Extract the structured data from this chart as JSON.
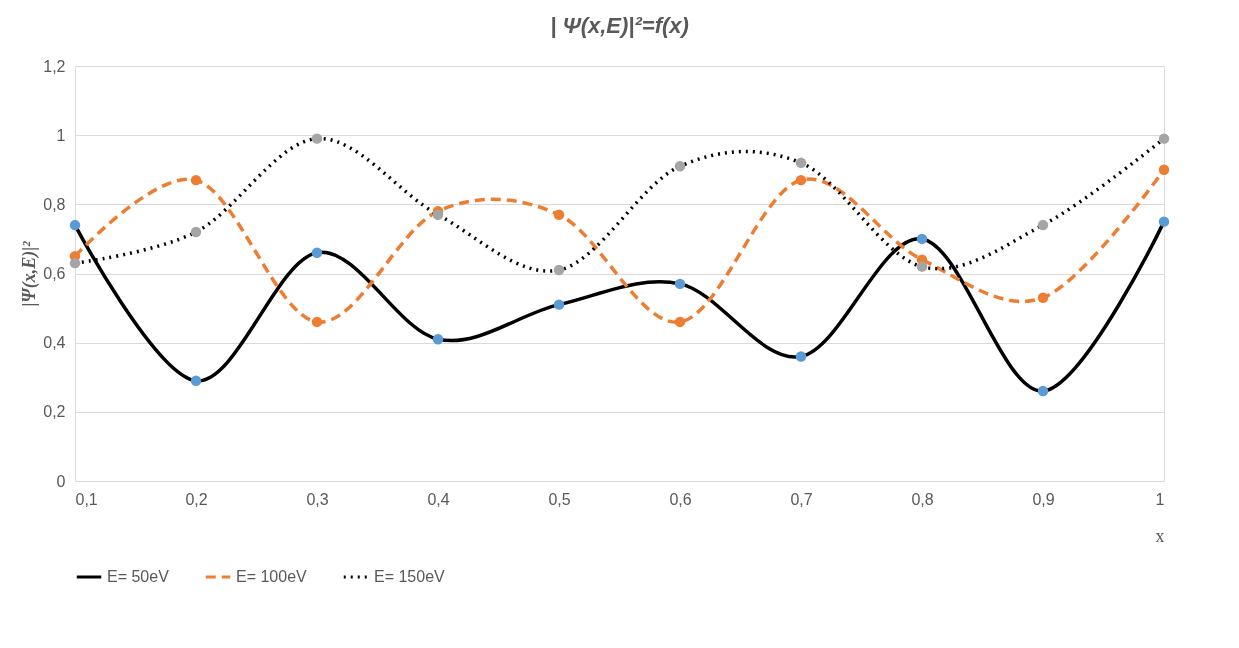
{
  "chart_data": {
    "type": "line",
    "title": "| Ψ(x,E)|²=f(x)",
    "xlabel": "x",
    "ylabel": "|Ψ(x,E)|²",
    "x": [
      0.1,
      0.2,
      0.3,
      0.4,
      0.5,
      0.6,
      0.7,
      0.8,
      0.9,
      1
    ],
    "series": [
      {
        "name": "E= 50eV",
        "color": "#000000",
        "colors": [
          "#5b9bd5",
          "#5b9bd5",
          "#5b9bd5",
          "#5b9bd5",
          "#5b9bd5",
          "#5b9bd5",
          "#5b9bd5",
          "#5b9bd5",
          "#5b9bd5",
          "#5b9bd5"
        ],
        "line_style": "solid",
        "values": [
          0.74,
          0.29,
          0.66,
          0.41,
          0.51,
          0.57,
          0.36,
          0.7,
          0.26,
          0.75
        ]
      },
      {
        "name": "E= 100eV",
        "color": "#ed7d31",
        "colors": [
          "#ed7d31",
          "#ed7d31",
          "#ed7d31",
          "#ed7d31",
          "#ed7d31",
          "#ed7d31",
          "#ed7d31",
          "#ed7d31",
          "#ed7d31",
          "#ed7d31"
        ],
        "line_style": "dashed",
        "values": [
          0.65,
          0.87,
          0.46,
          0.78,
          0.77,
          0.46,
          0.87,
          0.64,
          0.53,
          0.9
        ]
      },
      {
        "name": "E= 150eV",
        "color": "#000000",
        "colors": [
          "#a5a5a5",
          "#a5a5a5",
          "#a5a5a5",
          "#a5a5a5",
          "#a5a5a5",
          "#a5a5a5",
          "#a5a5a5",
          "#a5a5a5",
          "#a5a5a5",
          "#a5a5a5"
        ],
        "line_style": "dotted",
        "values": [
          0.63,
          0.72,
          0.99,
          0.77,
          0.61,
          0.91,
          0.92,
          0.62,
          0.74,
          0.99
        ]
      }
    ],
    "xlim": [
      0.1,
      1
    ],
    "xticks": [
      {
        "value": 0.1,
        "label": "0,1"
      },
      {
        "value": 0.2,
        "label": "0,2"
      },
      {
        "value": 0.3,
        "label": "0,3"
      },
      {
        "value": 0.4,
        "label": "0,4"
      },
      {
        "value": 0.5,
        "label": "0,5"
      },
      {
        "value": 0.6,
        "label": "0,6"
      },
      {
        "value": 0.7,
        "label": "0,7"
      },
      {
        "value": 0.8,
        "label": "0,8"
      },
      {
        "value": 0.9,
        "label": "0,9"
      },
      1
    ],
    "ylim": [
      0,
      1.2
    ],
    "yticks": [
      0,
      {
        "value": 0.2,
        "label": "0,2"
      },
      {
        "value": 0.4,
        "label": "0,4"
      },
      {
        "value": 0.6,
        "label": "0,6"
      },
      {
        "value": 0.8,
        "label": "0,8"
      },
      1,
      {
        "value": 1.2,
        "label": "1,2"
      }
    ],
    "grid": "y",
    "legend": "bottom",
    "marker": "circle"
  }
}
